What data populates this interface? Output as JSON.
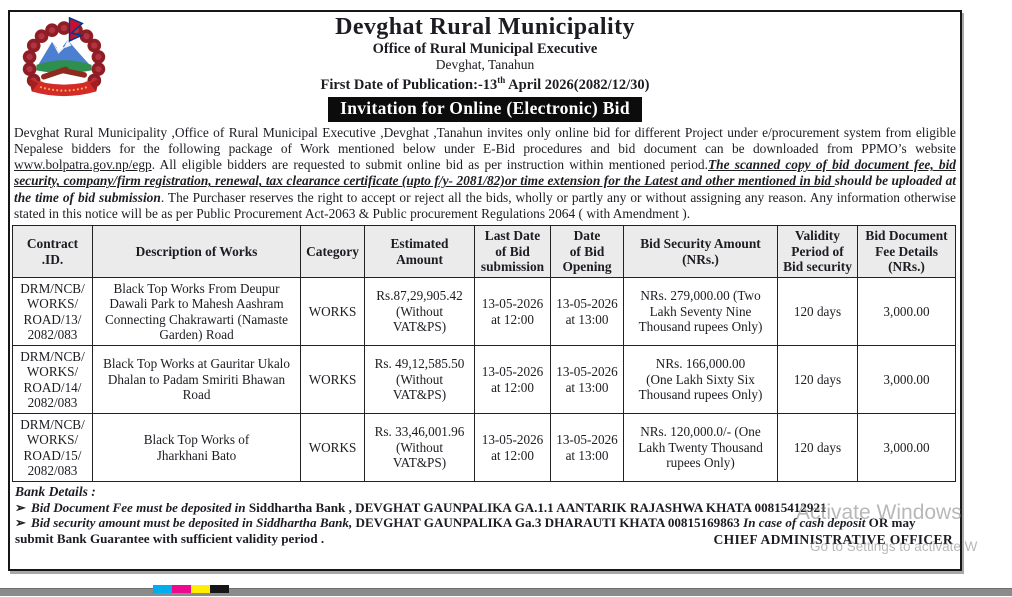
{
  "header": {
    "municipality": "Devghat Rural Municipality",
    "office": "Office of Rural Municipal Executive",
    "location": "Devghat, Tanahun",
    "publication_prefix": "First Date of Publication:-13",
    "publication_sup": "th",
    "publication_suffix": " April 2026(2082/12/30)",
    "banner": "Invitation for Online (Electronic) Bid"
  },
  "intro": {
    "part1": "Devghat Rural Municipality ,Office of Rural Municipal Executive ,Devghat ,Tanahun invites only online bid for different Project under e/procurement system from eligible Nepalese bidders for the following package of Work mentioned below under E-Bid procedures and bid document can be downloaded from PPMO’s website ",
    "link": "www.bolpatra.gov.np/egp",
    "part2": ". All eligible bidders are requested to submit online bid as per instruction within mentioned period.",
    "em_underline": "The scanned copy of bid document fee, bid security, company/firm registration, renewal, tax clearance certificate (upto f/y- 2081/82)or time extension for the Latest and other mentioned in bid ",
    "em_bold": "should be uploaded at the time of bid submission",
    "part3": ". The Purchaser reserves the right to accept or reject all the bids, wholly or partly any or without assigning any reason. Any information otherwise stated in this notice will be as per Public Procurement Act-2063 & Public procurement Regulations 2064 ( with Amendment )."
  },
  "table": {
    "headers": [
      "Contract\n.ID.",
      "Description of Works",
      "Category",
      "Estimated\nAmount",
      "Last Date\nof Bid\nsubmission",
      "Date\nof Bid\nOpening",
      "Bid Security Amount\n(NRs.)",
      "Validity\nPeriod of\nBid security",
      "Bid Document\nFee Details\n(NRs.)"
    ],
    "rows": [
      {
        "contract_id": "DRM/NCB/\nWORKS/\nROAD/13/\n2082/083",
        "description": "Black Top Works From Deupur Dawali Park to Mahesh Aashram Connecting Chakrawarti (Namaste Garden) Road",
        "category": "WORKS",
        "estimated_amount": "Rs.87,29,905.42\n(Without\nVAT&PS)",
        "last_date_submission": "13-05-2026\nat 12:00",
        "date_opening": "13-05-2026\nat 13:00",
        "bid_security": "NRs. 279,000.00 (Two Lakh Seventy Nine Thousand rupees Only)",
        "validity": "120 days",
        "fee": "3,000.00"
      },
      {
        "contract_id": "DRM/NCB/\nWORKS/\nROAD/14/\n2082/083",
        "description": "Black Top Works at Gauritar Ukalo Dhalan to Padam Smiriti Bhawan Road",
        "category": "WORKS",
        "estimated_amount": "Rs. 49,12,585.50\n(Without\nVAT&PS)",
        "last_date_submission": "13-05-2026\nat 12:00",
        "date_opening": "13-05-2026\nat 13:00",
        "bid_security": "NRs. 166,000.00\n(One Lakh Sixty Six Thousand rupees Only)",
        "validity": "120 days",
        "fee": "3,000.00"
      },
      {
        "contract_id": "DRM/NCB/\nWORKS/\nROAD/15/\n2082/083",
        "description": "Black Top Works of\nJharkhani Bato",
        "category": "WORKS",
        "estimated_amount": "Rs. 33,46,001.96\n(Without\nVAT&PS)",
        "last_date_submission": "13-05-2026\nat 12:00",
        "date_opening": "13-05-2026\nat 13:00",
        "bid_security": "NRs. 120,000.0/- (One Lakh Twenty Thousand rupees Only)",
        "validity": "120 days",
        "fee": "3,000.00"
      }
    ]
  },
  "bank": {
    "title": "Bank Details :",
    "bullet": "➢",
    "item1_italic": "Bid Document Fee must be deposited in",
    "item1_rest": " Siddhartha Bank , DEVGHAT GAUNPALIKA GA.1.1 AANTARIK RAJASHWA KHATA 00815412921",
    "item2_italic1": "Bid security amount must be deposited in Siddhartha Bank,",
    "item2_plain1": " DEVGHAT GAUNPALIKA Ga.3 DHARAUTI KHATA 00815169863 ",
    "item2_italic2": "In case of cash deposit",
    "item2_plain2": " OR may submit Bank Guarantee with sufficient validity period .",
    "signature": "CHIEF ADMINISTRATIVE OFFICER"
  },
  "watermark": {
    "line1": "Activate Windows",
    "line2": "Go to Settings to activate W"
  },
  "print_bar": {
    "colors": [
      "#00aeef",
      "#ec0b8c",
      "#ffee00",
      "#161616"
    ]
  }
}
